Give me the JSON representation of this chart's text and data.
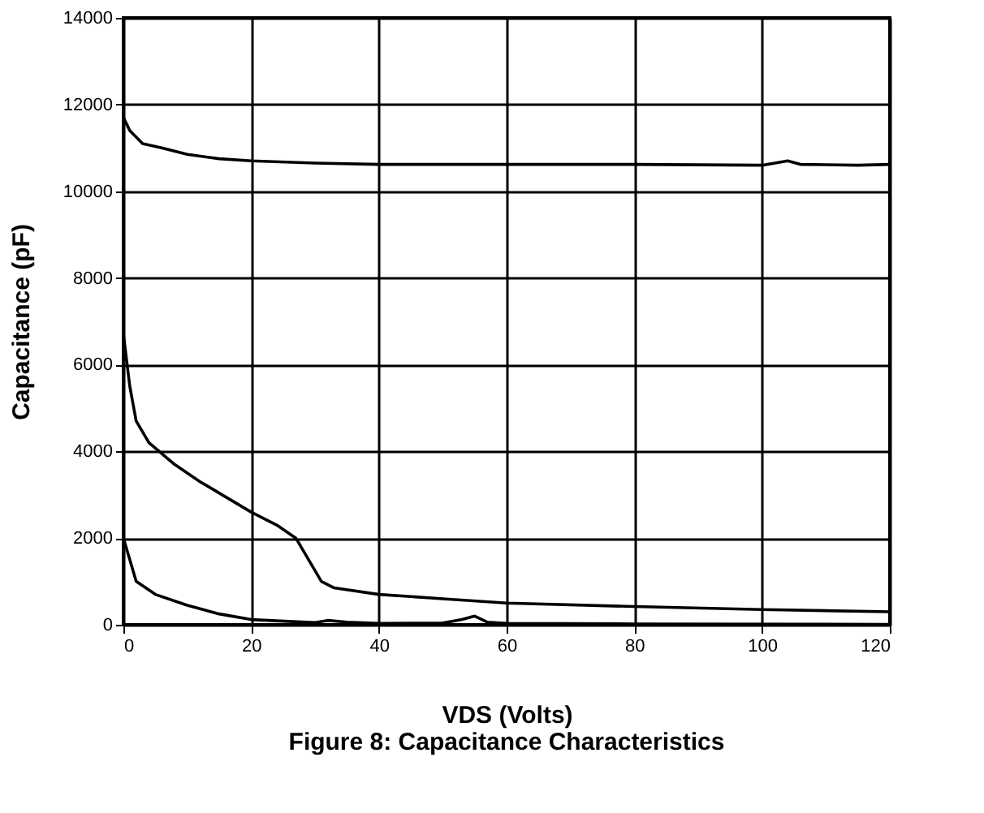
{
  "chart_data": {
    "type": "line",
    "xlabel": "VDS (Volts)",
    "ylabel": "Capacitance (pF)",
    "annotations": [
      "Figure 8: Capacitance Characteristics"
    ],
    "series": [
      {
        "color": "#000000",
        "x": [
          0,
          1,
          3,
          6,
          10,
          15,
          20,
          30,
          40,
          60,
          80,
          100,
          104,
          106,
          115,
          120
        ],
        "values": [
          11700,
          11400,
          11100,
          11000,
          10850,
          10750,
          10700,
          10650,
          10620,
          10620,
          10620,
          10600,
          10700,
          10620,
          10600,
          10620
        ]
      },
      {
        "color": "#000000",
        "x": [
          0,
          1,
          2,
          4,
          8,
          12,
          16,
          20,
          24,
          27,
          29,
          31,
          33,
          40,
          50,
          60,
          80,
          100,
          120
        ],
        "values": [
          6700,
          5500,
          4700,
          4200,
          3700,
          3300,
          2950,
          2600,
          2300,
          2000,
          1500,
          1000,
          850,
          700,
          600,
          500,
          420,
          350,
          300
        ]
      },
      {
        "color": "#000000",
        "x": [
          0,
          1,
          2,
          5,
          10,
          15,
          20,
          30,
          32,
          35,
          40,
          50,
          53,
          55,
          57,
          60,
          80,
          120
        ],
        "values": [
          2000,
          1500,
          1000,
          700,
          450,
          250,
          120,
          50,
          100,
          60,
          30,
          40,
          120,
          200,
          60,
          30,
          20,
          10
        ]
      }
    ],
    "xlim": [
      0,
      120
    ],
    "xticks": [
      0,
      20,
      40,
      60,
      80,
      100,
      120
    ],
    "ylim": [
      0,
      14000
    ],
    "yticks": [
      0,
      2000,
      4000,
      6000,
      8000,
      10000,
      12000,
      14000
    ],
    "grid": true,
    "legend": false,
    "marker": "none",
    "line_style": "solid"
  }
}
